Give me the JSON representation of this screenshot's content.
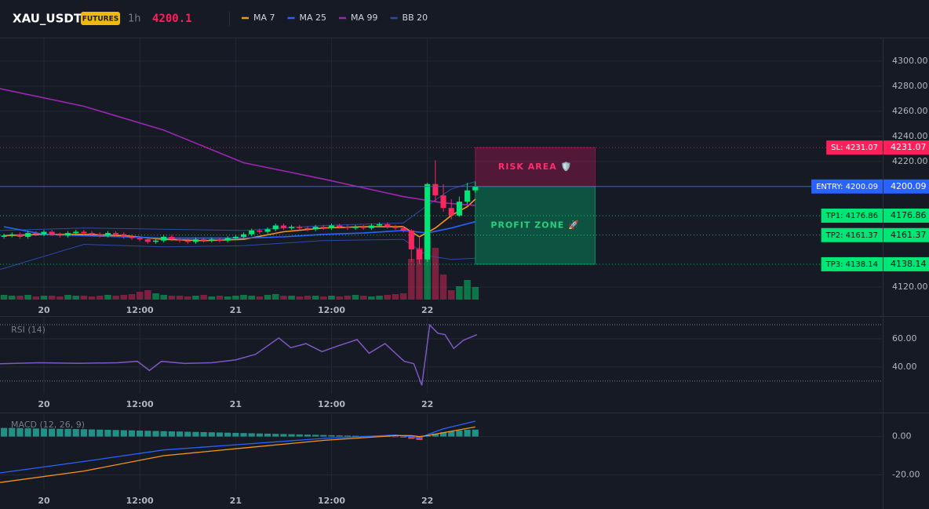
{
  "chart_data": [
    {
      "type": "candlestick",
      "symbol": "XAU_USDT",
      "badge": "FUTURES",
      "interval": "1h",
      "last_price": 4200.1,
      "up_color": "#00e676",
      "down_color": "#f6285f",
      "x": [
        -5,
        -4,
        -3,
        -2,
        -1,
        0,
        1,
        2,
        3,
        4,
        5,
        6,
        7,
        8,
        9,
        10,
        11,
        12,
        13,
        14,
        15,
        16,
        17,
        18,
        19,
        20,
        21,
        22,
        23,
        24,
        25,
        26,
        27,
        28,
        29,
        30,
        31,
        32,
        33,
        34,
        35,
        36,
        37,
        38,
        39,
        40,
        41,
        42,
        43,
        44,
        45,
        46,
        47,
        48,
        49,
        50,
        51,
        52,
        53,
        54
      ],
      "open": [
        4160,
        4161,
        4162,
        4160,
        4163,
        4162,
        4164,
        4162,
        4161,
        4163,
        4164,
        4163,
        4162,
        4161,
        4163,
        4162,
        4160,
        4159,
        4158,
        4156,
        4157,
        4160,
        4158,
        4157,
        4156,
        4158,
        4157,
        4158,
        4157,
        4159,
        4160,
        4162,
        4165,
        4164,
        4166,
        4169,
        4167,
        4168,
        4167,
        4166,
        4168,
        4167,
        4169,
        4168,
        4167,
        4168,
        4167,
        4169,
        4170,
        4168,
        4167,
        4165,
        4150,
        4142,
        4202,
        4193,
        4183,
        4177,
        4188,
        4197
      ],
      "high": [
        4162.5,
        4163.5,
        4163.5,
        4164.5,
        4164.5,
        4165.5,
        4165.5,
        4163.5,
        4164.5,
        4165.5,
        4165.5,
        4164.5,
        4163.5,
        4164.5,
        4164.5,
        4163.5,
        4161.5,
        4160.5,
        4159.5,
        4158.5,
        4161.5,
        4161.5,
        4159.5,
        4158.5,
        4159.5,
        4159.5,
        4159.5,
        4159.5,
        4160.5,
        4161.5,
        4163.5,
        4166.5,
        4166.5,
        4167.5,
        4170.5,
        4170.5,
        4169.5,
        4169.5,
        4168.5,
        4169.5,
        4169.5,
        4170.5,
        4170.5,
        4169.5,
        4169.5,
        4169.5,
        4170.5,
        4171.5,
        4171.5,
        4169.5,
        4168.5,
        4166,
        4160,
        4203,
        4221,
        4202,
        4190,
        4192,
        4203,
        4204
      ],
      "low": [
        4158.5,
        4159.5,
        4158.5,
        4158.5,
        4160.5,
        4160.5,
        4160.5,
        4159.5,
        4159.5,
        4161.5,
        4161.5,
        4160.5,
        4159.5,
        4159.5,
        4160.5,
        4158.5,
        4157.5,
        4156.5,
        4154.5,
        4154.5,
        4155.5,
        4156.5,
        4155.5,
        4154.5,
        4154.5,
        4155.5,
        4155.5,
        4155.5,
        4155.5,
        4157.5,
        4158.5,
        4160.5,
        4162.5,
        4162.5,
        4164.5,
        4165.5,
        4165.5,
        4165.5,
        4164.5,
        4164.5,
        4165.5,
        4165.5,
        4166.5,
        4165.5,
        4165.5,
        4165.5,
        4165.5,
        4167.5,
        4166.5,
        4165.5,
        4163.5,
        4140,
        4138,
        4140,
        4188,
        4180,
        4174,
        4176,
        4186,
        4195
      ],
      "close": [
        4161,
        4162,
        4160,
        4163,
        4162,
        4164,
        4162,
        4161,
        4163,
        4164,
        4163,
        4162,
        4161,
        4163,
        4162,
        4160,
        4159,
        4158,
        4156,
        4157,
        4160,
        4158,
        4157,
        4156,
        4158,
        4157,
        4158,
        4157,
        4159,
        4160,
        4162,
        4165,
        4164,
        4166,
        4169,
        4167,
        4168,
        4167,
        4166,
        4168,
        4167,
        4169,
        4168,
        4167,
        4168,
        4167,
        4169,
        4170,
        4168,
        4167,
        4165,
        4150,
        4142,
        4202,
        4193,
        4183,
        4177,
        4188,
        4197,
        4200.1
      ],
      "volume": [
        6,
        5,
        5,
        6,
        4,
        5,
        5,
        4,
        6,
        5,
        5,
        4,
        5,
        6,
        5,
        6,
        7,
        10,
        12,
        8,
        6,
        5,
        5,
        4,
        5,
        6,
        4,
        5,
        4,
        5,
        6,
        5,
        4,
        6,
        7,
        5,
        5,
        4,
        5,
        5,
        4,
        5,
        4,
        5,
        6,
        5,
        4,
        5,
        6,
        7,
        8,
        52,
        66,
        80,
        66,
        32,
        12,
        17,
        25,
        16
      ],
      "overlays": [
        {
          "name": "MA 7",
          "color": "#f7931a",
          "x": [
            -5,
            0,
            5,
            10,
            15,
            20,
            25,
            30,
            35,
            40,
            45,
            47,
            49,
            51,
            53,
            54
          ],
          "values": [
            4161,
            4162,
            4162,
            4161,
            4158,
            4157,
            4158,
            4164,
            4167,
            4168,
            4168,
            4160,
            4167,
            4177,
            4184,
            4190
          ]
        },
        {
          "name": "MA 25",
          "color": "#2962ff",
          "x": [
            -5,
            0,
            5,
            10,
            15,
            20,
            25,
            30,
            35,
            40,
            45,
            48,
            51,
            54
          ],
          "values": [
            4168,
            4162,
            4161,
            4160,
            4159,
            4159,
            4159,
            4160,
            4162,
            4163,
            4165,
            4163,
            4167,
            4172
          ]
        },
        {
          "name": "MA 99",
          "color": "#9c27b0",
          "x": [
            -5.5,
            5,
            15,
            25,
            35,
            45,
            50,
            54
          ],
          "values": [
            4278,
            4264,
            4245,
            4219,
            4206,
            4192,
            4187,
            4185
          ]
        }
      ],
      "bands": [
        {
          "name": "BB 20",
          "color": "#2a4aa8",
          "x": [
            -5.5,
            5,
            15,
            25,
            35,
            45,
            48,
            51,
            54
          ],
          "upper": [
            4165,
            4167,
            4166,
            4165,
            4169,
            4171,
            4185,
            4198,
            4204
          ],
          "lower": [
            4134,
            4154,
            4152,
            4153,
            4157,
            4158,
            4145,
            4142,
            4143
          ]
        }
      ],
      "zones": [
        {
          "label": "RISK AREA 🛡️",
          "low": 4200.09,
          "high": 4231.07,
          "x": [
            54,
            69
          ],
          "color": "#c2185b",
          "text_color": "#ff2d6f"
        },
        {
          "label": "PROFIT ZONE 🚀",
          "low": 4138.14,
          "high": 4200.09,
          "x": [
            54,
            69
          ],
          "color": "#00c176",
          "text_color": "#26d07c"
        }
      ],
      "levels": [
        {
          "label": "SL: 4231.07",
          "value": 4231.07,
          "color": "#ff1f5a",
          "text_color": "#ffffff",
          "style": "dotted"
        },
        {
          "label": "ENTRY: 4200.09",
          "value": 4200.09,
          "color": "#2962ff",
          "text_color": "#ffffff",
          "style": "solid"
        },
        {
          "label": "TP1: 4176.86",
          "value": 4176.86,
          "color": "#00e676",
          "text_color": "#0b0e14",
          "style": "dotted"
        },
        {
          "label": "TP2: 4161.37",
          "value": 4161.37,
          "color": "#00e676",
          "text_color": "#0b0e14",
          "style": "dotted"
        },
        {
          "label": "TP3: 4138.14",
          "value": 4138.14,
          "color": "#00e676",
          "text_color": "#0b0e14",
          "style": "dotted"
        }
      ],
      "xlim": [
        -5.5,
        105
      ],
      "xticks": [
        {
          "value": 0,
          "label": "20"
        },
        {
          "value": 12,
          "label": "12:00"
        },
        {
          "value": 24,
          "label": "21"
        },
        {
          "value": 36,
          "label": "12:00"
        },
        {
          "value": 48,
          "label": "22"
        }
      ],
      "ylim": [
        4110,
        4318
      ],
      "yticks": [
        {
          "value": 4120,
          "label": "4120.00"
        },
        {
          "value": 4220,
          "label": "4220.00"
        },
        {
          "value": 4240,
          "label": "4240.00"
        },
        {
          "value": 4260,
          "label": "4260.00"
        },
        {
          "value": 4280,
          "label": "4280.00"
        },
        {
          "value": 4300,
          "label": "4300.00"
        }
      ],
      "grid": true
    },
    {
      "type": "line",
      "title": "RSI (14)",
      "color": "#7e57c2",
      "x": [
        -5.5,
        -0.6,
        4.3,
        9.2,
        11.7,
        13.2,
        14.7,
        17.6,
        21,
        24,
        26.5,
        29.4,
        30.9,
        32.8,
        34.8,
        36.8,
        39.2,
        40.7,
        42.7,
        45.1,
        46.3,
        47.3,
        48.3,
        49.3,
        50.2,
        51.3,
        52.5,
        54.2
      ],
      "values": [
        42.3,
        43,
        42.6,
        43,
        44,
        37.5,
        44,
        42.5,
        43,
        45,
        49,
        60.6,
        53.7,
        56.6,
        50.9,
        54.9,
        59.4,
        49.7,
        56.6,
        44,
        42.3,
        26.9,
        69.7,
        64,
        62.9,
        53.1,
        58.9,
        62.9
      ],
      "levels": [
        30,
        70
      ],
      "xlim": [
        -5.5,
        105
      ],
      "xticks": [
        {
          "value": 0,
          "label": "20"
        },
        {
          "value": 12,
          "label": "12:00"
        },
        {
          "value": 24,
          "label": "21"
        },
        {
          "value": 36,
          "label": "12:00"
        },
        {
          "value": 48,
          "label": "22"
        }
      ],
      "ylim": [
        21,
        75
      ],
      "yticks": [
        {
          "value": 40,
          "label": "40.00"
        },
        {
          "value": 60,
          "label": "60.00"
        }
      ],
      "grid": true
    },
    {
      "type": "macd",
      "title": "MACD (12, 26, 9)",
      "lines": [
        {
          "color": "#2962ff",
          "x": [
            -5.5,
            5,
            15,
            25,
            35,
            44,
            46,
            47,
            48,
            50,
            52,
            54
          ],
          "values": [
            -19,
            -13,
            -7,
            -4,
            -1,
            0.8,
            0,
            -1,
            1,
            4,
            6,
            8
          ]
        },
        {
          "color": "#f7931a",
          "x": [
            -5.5,
            5,
            15,
            25,
            35,
            44,
            46,
            47,
            48,
            50,
            52,
            54
          ],
          "values": [
            -24,
            -18,
            -10,
            -6,
            -2,
            0.5,
            0.5,
            0,
            0.5,
            2,
            3.5,
            5
          ]
        }
      ],
      "histogram": {
        "up_color": "#26a69a",
        "down_color": "#ef5350",
        "x": [
          -5,
          -4,
          -3,
          -2,
          -1,
          0,
          1,
          2,
          3,
          4,
          5,
          6,
          7,
          8,
          9,
          10,
          11,
          12,
          13,
          14,
          15,
          16,
          17,
          18,
          19,
          20,
          21,
          22,
          23,
          24,
          25,
          26,
          27,
          28,
          29,
          30,
          31,
          32,
          33,
          34,
          35,
          36,
          37,
          38,
          39,
          40,
          41,
          42,
          43,
          44,
          45,
          46,
          47,
          48,
          49,
          50,
          51,
          52,
          53,
          54
        ],
        "values": [
          4.5,
          4.5,
          4.4,
          4.3,
          4.2,
          4.2,
          4.1,
          4,
          4,
          3.9,
          3.8,
          3.7,
          3.6,
          3.5,
          3.4,
          3.3,
          3.2,
          3.1,
          3,
          2.9,
          2.8,
          2.7,
          2.6,
          2.5,
          2.4,
          2.3,
          2.2,
          2.1,
          2,
          1.9,
          1.8,
          1.7,
          1.6,
          1.5,
          1.4,
          1.3,
          1.2,
          1.1,
          1,
          0.9,
          0.8,
          0.7,
          0.6,
          0.5,
          0.4,
          0.3,
          0.3,
          0.2,
          0.1,
          -0.3,
          -0.5,
          -1.2,
          -1.8,
          0.6,
          1.5,
          2.2,
          2.8,
          3.2,
          3.5,
          3.6
        ]
      },
      "xlim": [
        -5.5,
        105
      ],
      "xticks": [
        {
          "value": 0,
          "label": "20"
        },
        {
          "value": 12,
          "label": "12:00"
        },
        {
          "value": 24,
          "label": "21"
        },
        {
          "value": 36,
          "label": "12:00"
        },
        {
          "value": 48,
          "label": "22"
        }
      ],
      "ylim": [
        -28,
        11.7
      ],
      "yticks": [
        {
          "value": -20,
          "label": "-20.00"
        },
        {
          "value": 0,
          "label": "0.00"
        }
      ],
      "grid": true
    }
  ]
}
